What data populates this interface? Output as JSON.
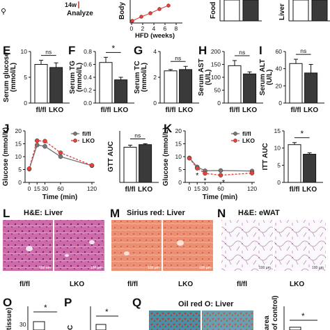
{
  "top_strip": {
    "timeline_week": "14w",
    "timeline_label": "Analyze",
    "hfd_xlabel": "HFD (weeks)",
    "hfd_xticks": [
      "0",
      "2",
      "4",
      "6",
      "8"
    ],
    "body_ylabel": "Body",
    "food_ylabel": "Food",
    "liver_ylabel": "Liver"
  },
  "panel_letters": {
    "E": "E",
    "F": "F",
    "G": "G",
    "H": "H",
    "I": "I",
    "J": "J",
    "K": "K",
    "L": "L",
    "M": "M",
    "N": "N",
    "O": "O",
    "P": "P",
    "Q": "Q"
  },
  "image_titles": {
    "L": "H&E: Liver",
    "M": "Sirius red: Liver",
    "N": "H&E: eWAT",
    "Q": "Oil red O: Liver"
  },
  "image_labels": {
    "L": [
      "fl/fl",
      "LKO"
    ],
    "M": [
      "fl/fl",
      "LKO"
    ],
    "N": [
      "fl/fl",
      "LKO"
    ]
  },
  "scalebar_text": "100 μm",
  "bottom_partial": {
    "O_ylabel": "tissue)",
    "O_tick": "30",
    "O_sig": "*",
    "P_ylabel": "C",
    "P_sig": "*",
    "Q_ylabel": "area",
    "Q_ylabel2": "of control)",
    "Q_sig": "*"
  },
  "colors": {
    "flfl": "#777777",
    "lko": "#e8413b",
    "bar_flfl": "#ffffff",
    "bar_lko": "#3a3a3a",
    "he": "#c9579b",
    "sirius": "#e8826a",
    "wat": "#f3eef3"
  },
  "chart_data": [
    {
      "id": "E",
      "type": "bar",
      "ylabel": "Serum glucose",
      "unit": "(mmol/L)",
      "categories": [
        "fl/fl",
        "LKO"
      ],
      "values": [
        7.5,
        6.9
      ],
      "errors": [
        0.8,
        0.9
      ],
      "ylim": [
        0,
        10
      ],
      "yticks": [
        "0",
        "5",
        "10"
      ],
      "sig": "ns"
    },
    {
      "id": "F",
      "type": "bar",
      "ylabel": "Serum TG",
      "unit": "(mmol/L)",
      "categories": [
        "fl/fl",
        "LKO"
      ],
      "values": [
        0.63,
        0.36
      ],
      "errors": [
        0.08,
        0.04
      ],
      "ylim": [
        0,
        0.8
      ],
      "yticks": [
        "0.0",
        "0.2",
        "0.4",
        "0.6",
        "0.8"
      ],
      "sig": "*"
    },
    {
      "id": "G",
      "type": "bar",
      "ylabel": "Serum TC",
      "unit": "(mmol/L)",
      "categories": [
        "fl/fl",
        "LKO"
      ],
      "values": [
        2.5,
        2.6
      ],
      "errors": [
        0.1,
        0.25
      ],
      "ylim": [
        0,
        4
      ],
      "yticks": [
        "0",
        "2",
        "4"
      ],
      "sig": "ns"
    },
    {
      "id": "H",
      "type": "bar",
      "ylabel": "Serum AST",
      "unit": "(U/L)",
      "categories": [
        "fl/fl",
        "LKO"
      ],
      "values": [
        145,
        113
      ],
      "errors": [
        20,
        8
      ],
      "ylim": [
        0,
        200
      ],
      "yticks": [
        "0",
        "50",
        "100",
        "150",
        "200"
      ],
      "sig": "ns"
    },
    {
      "id": "I",
      "type": "bar",
      "ylabel": "Serum ALT",
      "unit": "(U/L)",
      "categories": [
        "fl/fl",
        "LKO"
      ],
      "values": [
        46,
        35
      ],
      "errors": [
        5,
        10
      ],
      "ylim": [
        0,
        60
      ],
      "yticks": [
        "0",
        "20",
        "40",
        "60"
      ],
      "sig": "ns"
    },
    {
      "id": "J",
      "type": "line",
      "ylabel": "Glucose (mmol/L)",
      "xlabel": "Time (min)",
      "x": [
        0,
        15,
        30,
        60,
        120
      ],
      "xticks": [
        "0",
        "15",
        "30",
        "60",
        "120"
      ],
      "ylim": [
        0,
        20
      ],
      "yticks": [
        "0",
        "5",
        "10",
        "15",
        "20"
      ],
      "series": [
        {
          "name": "fl/fl",
          "values": [
            5.2,
            14.5,
            14.0,
            10.0,
            6.5
          ]
        },
        {
          "name": "LKO",
          "values": [
            5.3,
            16.2,
            16.0,
            11.5,
            6.6
          ]
        }
      ]
    },
    {
      "id": "J_AUC",
      "type": "bar",
      "ylabel": "GTT AUC",
      "categories": [
        "fl/fl",
        "LKO"
      ],
      "values": [
        20.5,
        22.0
      ],
      "errors": [
        1.2,
        0.5
      ],
      "ylim": [
        0,
        30
      ],
      "sig": "ns"
    },
    {
      "id": "K",
      "type": "line",
      "ylabel": "Glucose (mmol/L)",
      "xlabel": "Time (min)",
      "x": [
        0,
        15,
        30,
        60,
        120
      ],
      "xticks": [
        "0",
        "15",
        "30",
        "60",
        "120"
      ],
      "ylim": [
        0,
        20
      ],
      "yticks": [
        "0",
        "5",
        "10",
        "15",
        "20"
      ],
      "annotations": [
        "*",
        "*",
        "*"
      ],
      "series": [
        {
          "name": "fl/fl",
          "values": [
            9.5,
            6.0,
            4.5,
            4.6,
            4.4
          ]
        },
        {
          "name": "LKO",
          "values": [
            9.4,
            5.5,
            3.5,
            2.8,
            3.6
          ]
        }
      ]
    },
    {
      "id": "K_AUC",
      "type": "bar",
      "ylabel": "ITT AUC",
      "categories": [
        "fl/fl",
        "LKO"
      ],
      "values": [
        11.0,
        8.2
      ],
      "errors": [
        0.6,
        0.4
      ],
      "ylim": [
        0,
        15
      ],
      "yticks": [
        "0",
        "5",
        "10",
        "15"
      ],
      "sig": "*"
    }
  ]
}
